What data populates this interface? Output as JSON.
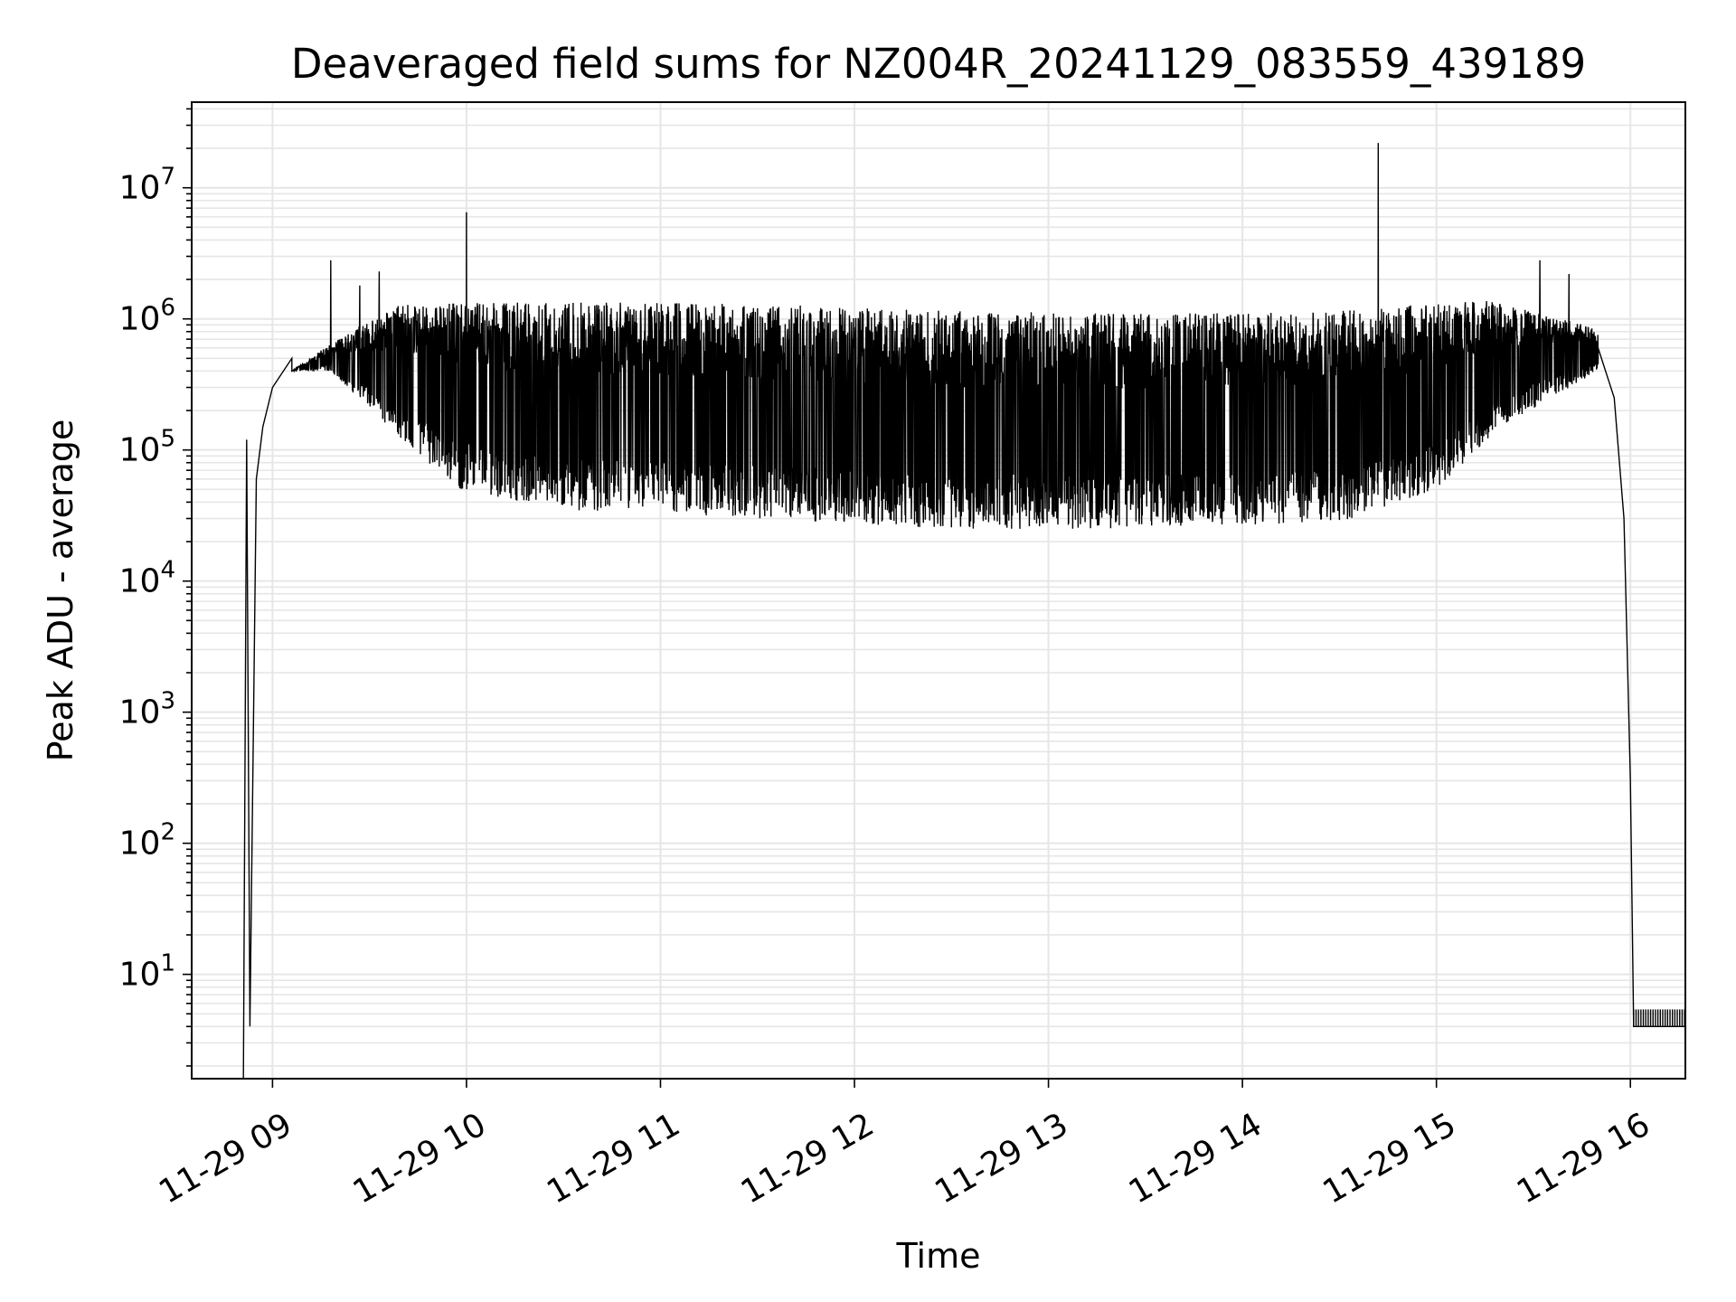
{
  "chart_data": {
    "type": "line",
    "title": "Deaveraged field sums for NZ004R_20241129_083559_439189",
    "xlabel": "Time",
    "ylabel": "Peak ADU - average",
    "yscale": "log",
    "ylim": [
      1.6,
      45000000
    ],
    "xlim": [
      "2024-11-29 08:35",
      "2024-11-29 16:17"
    ],
    "grid": true,
    "line_color": "#000000",
    "grid_color": "#e6e6e6",
    "x_ticks": [
      {
        "value": "2024-11-29 09:00",
        "label": "11-29 09"
      },
      {
        "value": "2024-11-29 10:00",
        "label": "11-29 10"
      },
      {
        "value": "2024-11-29 11:00",
        "label": "11-29 11"
      },
      {
        "value": "2024-11-29 12:00",
        "label": "11-29 12"
      },
      {
        "value": "2024-11-29 13:00",
        "label": "11-29 13"
      },
      {
        "value": "2024-11-29 14:00",
        "label": "11-29 14"
      },
      {
        "value": "2024-11-29 15:00",
        "label": "11-29 15"
      },
      {
        "value": "2024-11-29 16:00",
        "label": "11-29 16"
      }
    ],
    "y_ticks": [
      {
        "value": 10,
        "base": "10",
        "exp": "1"
      },
      {
        "value": 100,
        "base": "10",
        "exp": "2"
      },
      {
        "value": 1000,
        "base": "10",
        "exp": "3"
      },
      {
        "value": 10000,
        "base": "10",
        "exp": "4"
      },
      {
        "value": 100000,
        "base": "10",
        "exp": "5"
      },
      {
        "value": 1000000,
        "base": "10",
        "exp": "6"
      },
      {
        "value": 10000000,
        "base": "10",
        "exp": "7"
      }
    ],
    "series": [
      {
        "envelope": {
          "upper": [
            [
              "2024-11-29 09:06",
              400000
            ],
            [
              "2024-11-29 09:18",
              650000
            ],
            [
              "2024-11-29 09:40",
              1300000
            ],
            [
              "2024-11-29 10:30",
              1350000
            ],
            [
              "2024-11-29 11:30",
              1300000
            ],
            [
              "2024-11-29 12:30",
              1150000
            ],
            [
              "2024-11-29 13:30",
              1100000
            ],
            [
              "2024-11-29 14:30",
              1150000
            ],
            [
              "2024-11-29 15:15",
              1400000
            ],
            [
              "2024-11-29 15:50",
              850000
            ]
          ],
          "lower": [
            [
              "2024-11-29 09:06",
              400000
            ],
            [
              "2024-11-29 09:18",
              400000
            ],
            [
              "2024-11-29 09:40",
              120000
            ],
            [
              "2024-11-29 09:58",
              50000
            ],
            [
              "2024-11-29 10:30",
              35000
            ],
            [
              "2024-11-29 11:30",
              30000
            ],
            [
              "2024-11-29 12:30",
              25000
            ],
            [
              "2024-11-29 13:30",
              25000
            ],
            [
              "2024-11-29 14:30",
              28000
            ],
            [
              "2024-11-29 15:00",
              50000
            ],
            [
              "2024-11-29 15:20",
              150000
            ],
            [
              "2024-11-29 15:50",
              400000
            ]
          ]
        },
        "spikes": [
          [
            "2024-11-29 09:18",
            2800000
          ],
          [
            "2024-11-29 09:27",
            1800000
          ],
          [
            "2024-11-29 09:33",
            2300000
          ],
          [
            "2024-11-29 10:00",
            6500000
          ],
          [
            "2024-11-29 14:42",
            22000000
          ],
          [
            "2024-11-29 15:32",
            2800000
          ],
          [
            "2024-11-29 15:41",
            2200000
          ]
        ],
        "ramp_up": [
          [
            "2024-11-29 08:51",
            1.6
          ],
          [
            "2024-11-29 08:52",
            120000
          ],
          [
            "2024-11-29 08:53",
            4
          ],
          [
            "2024-11-29 08:55",
            60000
          ],
          [
            "2024-11-29 08:57",
            150000
          ],
          [
            "2024-11-29 09:00",
            300000
          ],
          [
            "2024-11-29 09:06",
            500000
          ]
        ],
        "ramp_down": [
          [
            "2024-11-29 15:50",
            600000
          ],
          [
            "2024-11-29 15:55",
            250000
          ],
          [
            "2024-11-29 15:58",
            30000
          ],
          [
            "2024-11-29 16:00",
            300
          ],
          [
            "2024-11-29 16:01",
            4
          ],
          [
            "2024-11-29 16:17",
            4
          ]
        ],
        "tail_level": 4
      }
    ]
  }
}
